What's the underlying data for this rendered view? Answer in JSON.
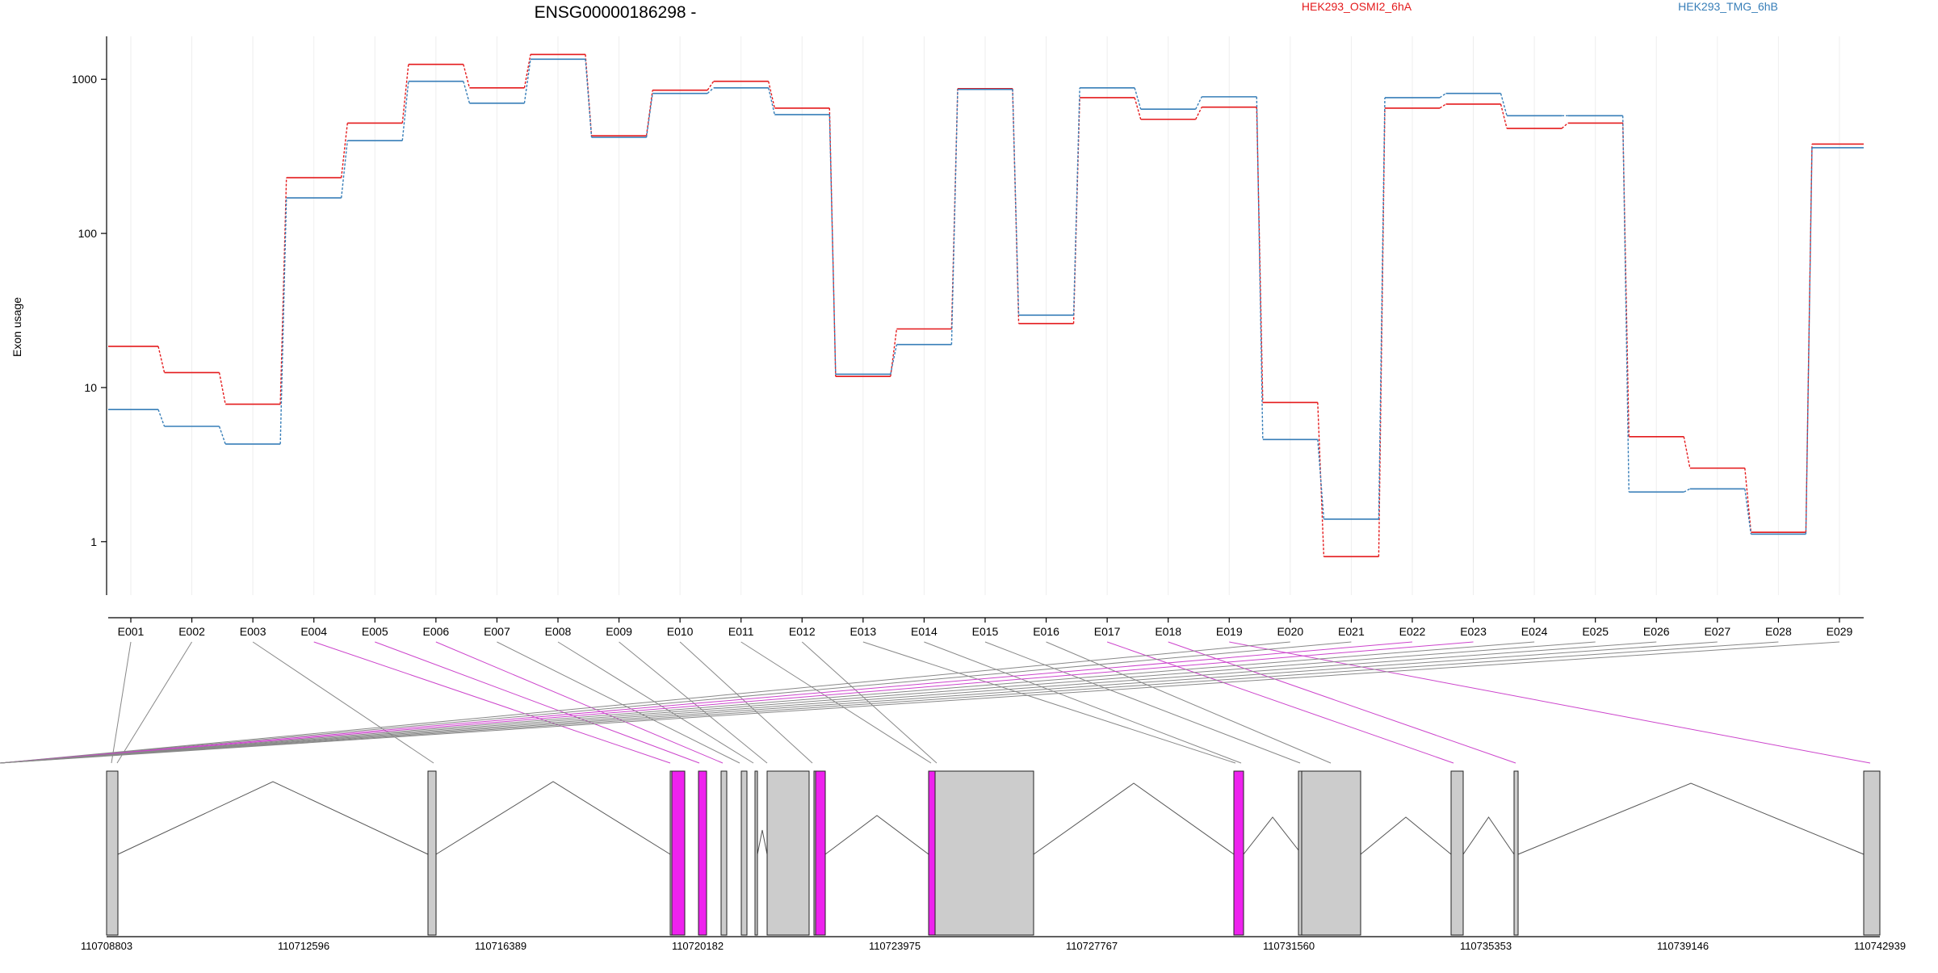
{
  "chart_data": {
    "type": "line",
    "title": "ENSG00000186298 -",
    "ylabel": "Exon usage",
    "yscale": "log",
    "ylim": [
      0.45,
      1900
    ],
    "yticks": [
      1,
      10,
      100,
      1000
    ],
    "ytick_labels": [
      "1",
      "10",
      "100",
      "1000"
    ],
    "categories": [
      "E001",
      "E002",
      "E003",
      "E004",
      "E005",
      "E006",
      "E007",
      "E008",
      "E009",
      "E010",
      "E011",
      "E012",
      "E013",
      "E014",
      "E015",
      "E016",
      "E017",
      "E018",
      "E019",
      "E020",
      "E021",
      "E022",
      "E023",
      "E024",
      "E025",
      "E026",
      "E027",
      "E028",
      "E029"
    ],
    "series": [
      {
        "name": "HEK293_OSMI2_6hA",
        "color": "#e41a1c",
        "values": [
          18.5,
          12.5,
          7.8,
          230,
          520,
          1250,
          880,
          1450,
          430,
          850,
          970,
          650,
          11.8,
          24,
          870,
          26,
          760,
          550,
          660,
          8,
          0.8,
          650,
          690,
          480,
          520,
          4.8,
          3,
          1.15,
          380
        ]
      },
      {
        "name": "HEK293_TMG_6hB",
        "color": "#377eb8",
        "values": [
          7.2,
          5.6,
          4.3,
          170,
          400,
          970,
          700,
          1350,
          420,
          810,
          880,
          590,
          12.2,
          19,
          860,
          29.5,
          880,
          640,
          770,
          4.6,
          1.4,
          760,
          810,
          580,
          580,
          2.1,
          2.2,
          1.12,
          360
        ]
      }
    ],
    "grid": "vertical"
  },
  "gene_model": {
    "coord_labels": [
      "110708803",
      "110712596",
      "110716389",
      "110720182",
      "110723975",
      "110727767",
      "110731560",
      "110735353",
      "110739146",
      "110742939"
    ],
    "highlight_color": "#ee22ee",
    "exon_color": "#cccccc",
    "exon_highlight": [
      false,
      false,
      false,
      true,
      true,
      true,
      false,
      false,
      false,
      false,
      false,
      false,
      false,
      false,
      false,
      false,
      true,
      true,
      true,
      false,
      false,
      true,
      true,
      false,
      false,
      false,
      false,
      false,
      false
    ]
  }
}
